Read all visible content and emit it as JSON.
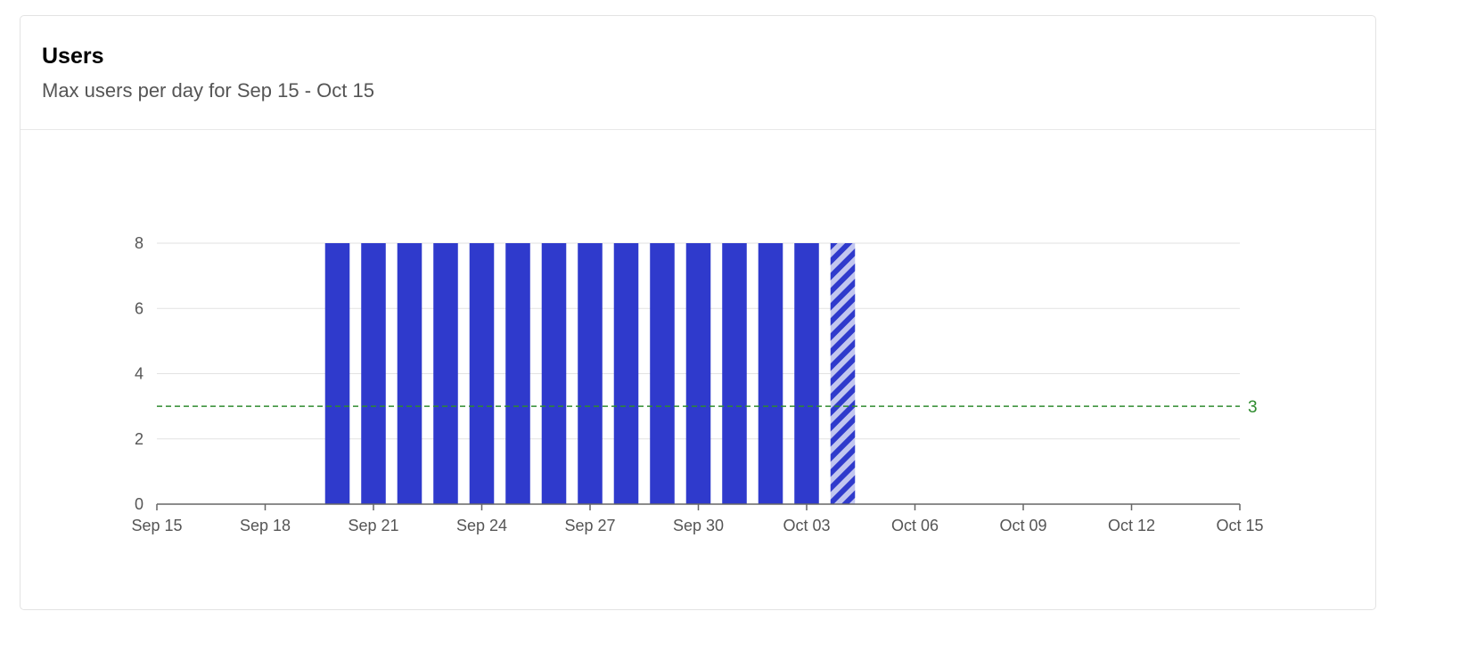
{
  "card": {
    "title": "Users",
    "subtitle": "Max users per day for Sep 15 - Oct 15"
  },
  "chart_data": {
    "type": "bar",
    "title": "Users",
    "subtitle": "Max users per day for Sep 15 - Oct 15",
    "x": [
      "Sep 20",
      "Sep 21",
      "Sep 22",
      "Sep 23",
      "Sep 24",
      "Sep 25",
      "Sep 26",
      "Sep 27",
      "Sep 28",
      "Sep 29",
      "Sep 30",
      "Oct 01",
      "Oct 02",
      "Oct 03",
      "Oct 04"
    ],
    "values": [
      8,
      8,
      8,
      8,
      8,
      8,
      8,
      8,
      8,
      8,
      8,
      8,
      8,
      8,
      8
    ],
    "partial_last_bar": true,
    "xlim": [
      "Sep 15",
      "Oct 15"
    ],
    "x_ticks": [
      "Sep 15",
      "Sep 18",
      "Sep 21",
      "Sep 24",
      "Sep 27",
      "Sep 30",
      "Oct 03",
      "Oct 06",
      "Oct 09",
      "Oct 12",
      "Oct 15"
    ],
    "ylim": [
      0,
      8
    ],
    "y_ticks": [
      0,
      2,
      4,
      6,
      8
    ],
    "grid": true,
    "threshold": {
      "value": 3,
      "label": "3",
      "color": "#2e8b2e"
    },
    "colors": {
      "bar": "#2f3acc",
      "bar_partial_light": "#c2c6ef",
      "grid": "#e2e2e2",
      "axis": "#666666",
      "tick_label": "#555555"
    }
  }
}
